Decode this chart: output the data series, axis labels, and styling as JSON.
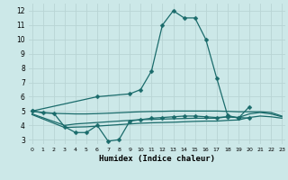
{
  "xlabel": "Humidex (Indice chaleur)",
  "bg_color": "#cce8e8",
  "grid_color": "#b8d4d4",
  "line_color": "#1a6b6b",
  "ylim": [
    2.7,
    12.5
  ],
  "xlim": [
    -0.3,
    23.3
  ],
  "yticks": [
    3,
    4,
    5,
    6,
    7,
    8,
    9,
    10,
    11,
    12
  ],
  "xticks": [
    0,
    1,
    2,
    3,
    4,
    5,
    6,
    7,
    8,
    9,
    10,
    11,
    12,
    13,
    14,
    15,
    16,
    17,
    18,
    19,
    20,
    21,
    22,
    23
  ],
  "lines": [
    {
      "x": [
        0,
        1,
        2,
        3,
        4,
        5,
        6,
        7,
        8,
        9,
        10,
        11,
        12,
        13,
        14,
        15,
        16,
        17,
        18,
        19,
        20
      ],
      "y": [
        5.0,
        4.9,
        4.85,
        3.9,
        3.5,
        3.5,
        4.0,
        2.9,
        3.0,
        4.3,
        4.4,
        4.5,
        4.55,
        4.6,
        4.65,
        4.65,
        4.6,
        4.55,
        4.6,
        4.55,
        4.5
      ],
      "marker": true
    },
    {
      "x": [
        0,
        6,
        9,
        10,
        11,
        12,
        13,
        14,
        15,
        16,
        17,
        18,
        19,
        20
      ],
      "y": [
        5.0,
        6.0,
        6.2,
        6.5,
        7.8,
        11.0,
        12.0,
        11.5,
        11.5,
        10.0,
        7.3,
        4.7,
        4.5,
        5.3
      ],
      "marker": true
    },
    {
      "x": [
        0,
        1,
        2,
        3,
        4,
        5,
        6,
        7,
        8,
        9,
        10,
        11,
        12,
        13,
        14,
        15,
        16,
        17,
        18,
        19,
        20,
        21,
        22,
        23
      ],
      "y": [
        5.0,
        4.87,
        4.84,
        4.82,
        4.8,
        4.8,
        4.82,
        4.85,
        4.88,
        4.92,
        4.95,
        4.97,
        4.98,
        5.0,
        5.0,
        5.0,
        5.0,
        5.0,
        4.98,
        4.95,
        4.95,
        4.95,
        4.9,
        4.65
      ],
      "marker": false
    },
    {
      "x": [
        0,
        3,
        4,
        5,
        6,
        7,
        8,
        9,
        10,
        11,
        12,
        13,
        14,
        15,
        16,
        17,
        18,
        19,
        20,
        21,
        22,
        23
      ],
      "y": [
        4.8,
        4.0,
        4.1,
        4.15,
        4.2,
        4.25,
        4.3,
        4.35,
        4.4,
        4.42,
        4.44,
        4.46,
        4.48,
        4.5,
        4.5,
        4.5,
        4.6,
        4.55,
        4.8,
        4.9,
        4.8,
        4.6
      ],
      "marker": false
    },
    {
      "x": [
        0,
        3,
        4,
        5,
        6,
        7,
        8,
        9,
        10,
        11,
        12,
        13,
        14,
        15,
        16,
        17,
        18,
        19,
        20,
        21,
        22,
        23
      ],
      "y": [
        4.75,
        3.85,
        3.88,
        3.9,
        3.95,
        4.0,
        4.05,
        4.1,
        4.15,
        4.18,
        4.2,
        4.22,
        4.25,
        4.28,
        4.3,
        4.3,
        4.35,
        4.38,
        4.55,
        4.65,
        4.6,
        4.5
      ],
      "marker": false
    }
  ],
  "lw": 0.9,
  "ms": 2.5
}
